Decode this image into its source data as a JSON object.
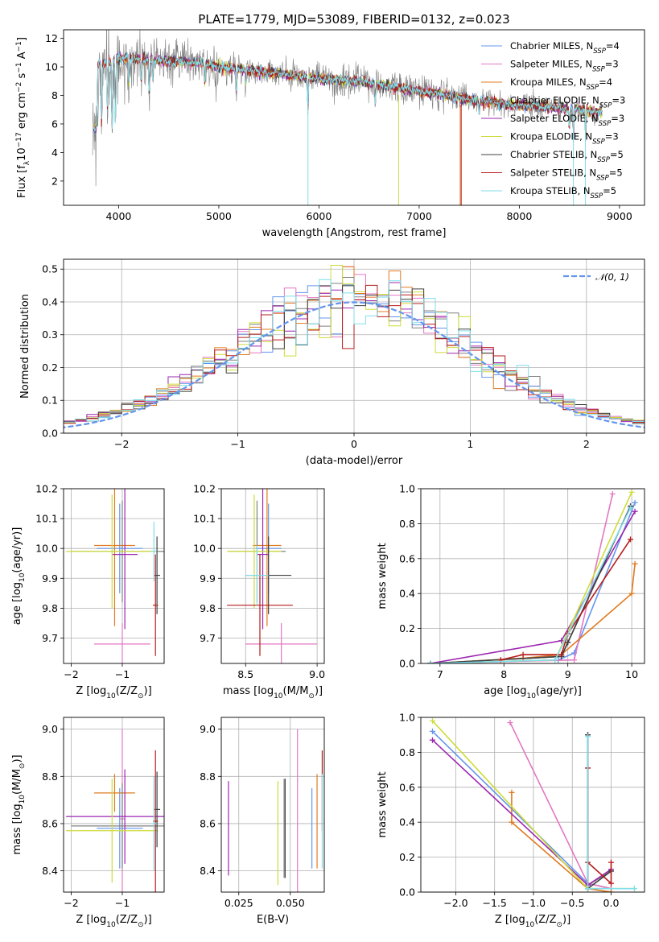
{
  "figure": {
    "title": "PLATE=1779, MJD=53089, FIBERID=0132, z=0.023"
  },
  "models": [
    {
      "name": "Chabrier MILES",
      "nssp": "4",
      "color": "#6495ed"
    },
    {
      "name": "Salpeter MILES",
      "nssp": "3",
      "color": "#e377c2"
    },
    {
      "name": "Kroupa MILES",
      "nssp": "4",
      "color": "#e07b20"
    },
    {
      "name": "Chabrier ELODIE",
      "nssp": "3",
      "color": "#808080"
    },
    {
      "name": "Salpeter ELODIE",
      "nssp": "3",
      "color": "#9c27b0"
    },
    {
      "name": "Kroupa ELODIE",
      "nssp": "3",
      "color": "#cddc39"
    },
    {
      "name": "Chabrier STELIB",
      "nssp": "5",
      "color": "#404040"
    },
    {
      "name": "Salpeter STELIB",
      "nssp": "5",
      "color": "#b71c1c"
    },
    {
      "name": "Kroupa STELIB",
      "nssp": "5",
      "color": "#80deea"
    }
  ],
  "chart_data": [
    {
      "id": "spectrum",
      "type": "line",
      "xlabel": "wavelength [Angstrom, rest frame]",
      "ylabel": "Flux [f_λ10^-17 erg cm^-2 s^-1 A^-1]",
      "xlim": [
        3450,
        9250
      ],
      "ylim": [
        0.3,
        12.6
      ],
      "xticks": [
        4000,
        5000,
        6000,
        7000,
        8000,
        9000
      ],
      "yticks": [
        2,
        4,
        6,
        8,
        10,
        12
      ],
      "data_color": "#808080",
      "continuum": {
        "x": [
          3760,
          3800,
          3900,
          4000,
          4100,
          4300,
          4500,
          4800,
          5000,
          5500,
          6000,
          6500,
          7000,
          7300,
          7500,
          8000,
          8300,
          8600,
          8800
        ],
        "y": [
          9.6,
          10.2,
          10.4,
          10.6,
          10.6,
          10.5,
          10.4,
          10.3,
          10.0,
          9.6,
          9.2,
          8.9,
          8.3,
          8.0,
          7.7,
          7.3,
          7.2,
          7.0,
          6.8
        ]
      },
      "legend_position": "upper right"
    },
    {
      "id": "residuals",
      "type": "step",
      "xlabel": "(data-model)/error",
      "ylabel": "Normed distribution",
      "xlim": [
        -2.5,
        2.5
      ],
      "ylim": [
        0,
        0.53
      ],
      "xticks": [
        -2,
        -1,
        0,
        1,
        2
      ],
      "yticks": [
        0.0,
        0.1,
        0.2,
        0.3,
        0.4,
        0.5
      ],
      "bin_width": 0.1,
      "reference": {
        "label": "𝒩(0, 1)",
        "color": "#6495ed",
        "style": "dashed"
      },
      "legend_position": "upper right",
      "grid": true
    },
    {
      "id": "age_vs_Z",
      "type": "errorbar",
      "xlabel": "Z [log10(Z/Z⊙)]",
      "ylabel": "age  [log10(age/yr)]",
      "xlim": [
        -2.15,
        -0.18
      ],
      "ylim": [
        9.615,
        10.2
      ],
      "xticks": [
        -2,
        -1
      ],
      "yticks": [
        9.7,
        9.8,
        9.9,
        10.0,
        10.1,
        10.2
      ],
      "points": [
        {
          "m": 0,
          "x": -1.05,
          "y": 10.0,
          "xerr": 0.45,
          "yerr": 0.15
        },
        {
          "m": 1,
          "x": -1.0,
          "y": 9.68,
          "xerr": 0.55,
          "yerr": 0.07
        },
        {
          "m": 2,
          "x": -1.15,
          "y": 10.01,
          "xerr": 0.4,
          "yerr": 0.27
        },
        {
          "m": 3,
          "x": -1.0,
          "y": 9.99,
          "xerr": 1.0,
          "yerr": 0.17
        },
        {
          "m": 4,
          "x": -0.95,
          "y": 9.98,
          "xerr": 0.25,
          "yerr": 0.25
        },
        {
          "m": 5,
          "x": -1.2,
          "y": 9.99,
          "xerr": 0.9,
          "yerr": 0.19
        },
        {
          "m": 6,
          "x": -0.32,
          "y": 9.91,
          "xerr": 0.06,
          "yerr": 0.13
        },
        {
          "m": 7,
          "x": -0.35,
          "y": 9.81,
          "xerr": 0.05,
          "yerr": 0.17
        },
        {
          "m": 8,
          "x": -0.38,
          "y": 9.99,
          "xerr": 0.05,
          "yerr": 0.1
        }
      ]
    },
    {
      "id": "age_vs_mass",
      "type": "errorbar",
      "xlabel": "mass [log10(M/M⊙)]",
      "ylabel": "",
      "xlim": [
        8.33,
        9.05
      ],
      "ylim": [
        9.615,
        10.2
      ],
      "xticks": [
        8.5,
        9.0
      ],
      "yticks": [
        9.7,
        9.8,
        9.9,
        10.0,
        10.1,
        10.2
      ],
      "points": [
        {
          "m": 0,
          "x": 8.66,
          "y": 10.0,
          "xerr": 0.09,
          "yerr": 0.15
        },
        {
          "m": 1,
          "x": 8.75,
          "y": 9.68,
          "xerr": 0.25,
          "yerr": 0.07
        },
        {
          "m": 2,
          "x": 8.65,
          "y": 10.01,
          "xerr": 0.1,
          "yerr": 0.27
        },
        {
          "m": 3,
          "x": 8.58,
          "y": 9.99,
          "xerr": 0.2,
          "yerr": 0.17
        },
        {
          "m": 4,
          "x": 8.62,
          "y": 9.98,
          "xerr": 0.04,
          "yerr": 0.25
        },
        {
          "m": 5,
          "x": 8.56,
          "y": 9.99,
          "xerr": 0.19,
          "yerr": 0.19
        },
        {
          "m": 6,
          "x": 8.66,
          "y": 9.91,
          "xerr": 0.16,
          "yerr": 0.13
        },
        {
          "m": 7,
          "x": 8.6,
          "y": 9.81,
          "xerr": 0.23,
          "yerr": 0.17
        },
        {
          "m": 8,
          "x": 8.58,
          "y": 9.91,
          "xerr": 0.08,
          "yerr": 0.1
        }
      ]
    },
    {
      "id": "massweight_vs_age",
      "type": "line",
      "xlabel": "age  [log10(age/yr)]",
      "ylabel": "mass weight",
      "xlim": [
        6.7,
        10.2
      ],
      "ylim": [
        0,
        1.0
      ],
      "xticks": [
        7,
        8,
        9,
        10
      ],
      "yticks": [
        0.0,
        0.2,
        0.4,
        0.6,
        0.8,
        1.0
      ],
      "grid": true,
      "series": [
        {
          "m": 0,
          "x": [
            6.85,
            8.85,
            9.1,
            10.05
          ],
          "y": [
            0.0,
            0.02,
            0.06,
            0.92
          ]
        },
        {
          "m": 1,
          "x": [
            6.85,
            9.1,
            9.7
          ],
          "y": [
            0.0,
            0.02,
            0.97
          ]
        },
        {
          "m": 2,
          "x": [
            6.85,
            8.3,
            8.9,
            10.0,
            10.05
          ],
          "y": [
            0.0,
            0.03,
            0.05,
            0.4,
            0.57
          ]
        },
        {
          "m": 3,
          "x": [
            6.85,
            8.9,
            9.0,
            9.98
          ],
          "y": [
            0.0,
            0.04,
            0.12,
            0.9
          ]
        },
        {
          "m": 4,
          "x": [
            6.85,
            8.9,
            10.05
          ],
          "y": [
            0.0,
            0.13,
            0.87
          ]
        },
        {
          "m": 5,
          "x": [
            6.85,
            8.8,
            10.0
          ],
          "y": [
            0.0,
            0.02,
            0.98
          ]
        },
        {
          "m": 6,
          "x": [
            6.85,
            8.9,
            9.0,
            9.98
          ],
          "y": [
            0.0,
            0.04,
            0.12,
            0.9
          ]
        },
        {
          "m": 7,
          "x": [
            7.95,
            8.3,
            8.9,
            9.0,
            9.98
          ],
          "y": [
            0.02,
            0.05,
            0.05,
            0.17,
            0.71
          ]
        },
        {
          "m": 8,
          "x": [
            6.85,
            8.8,
            9.98
          ],
          "y": [
            0.0,
            0.02,
            0.89
          ]
        }
      ]
    },
    {
      "id": "mass_vs_Z",
      "type": "errorbar",
      "xlabel": "Z [log10(Z/Z⊙)]",
      "ylabel": "mass [log10(M/M⊙)]",
      "xlim": [
        -2.15,
        -0.18
      ],
      "ylim": [
        8.31,
        9.05
      ],
      "xticks": [
        -2,
        -1
      ],
      "yticks": [
        8.4,
        8.6,
        8.8,
        9.0
      ],
      "points": [
        {
          "m": 0,
          "x": -1.05,
          "y": 8.58,
          "xerr": 0.45,
          "yerr": 0.17
        },
        {
          "m": 1,
          "x": -1.0,
          "y": 8.62,
          "xerr": 0.05,
          "yerr": 0.38
        },
        {
          "m": 2,
          "x": -1.15,
          "y": 8.73,
          "xerr": 0.4,
          "yerr": 0.08
        },
        {
          "m": 3,
          "x": -1.0,
          "y": 8.59,
          "xerr": 1.0,
          "yerr": 0.18
        },
        {
          "m": 4,
          "x": -0.95,
          "y": 8.63,
          "xerr": 1.15,
          "yerr": 0.2
        },
        {
          "m": 5,
          "x": -1.2,
          "y": 8.57,
          "xerr": 0.9,
          "yerr": 0.22
        },
        {
          "m": 6,
          "x": -0.32,
          "y": 8.66,
          "xerr": 0.06,
          "yerr": 0.16
        },
        {
          "m": 7,
          "x": -0.35,
          "y": 8.61,
          "xerr": 0.05,
          "yerr": 0.3
        },
        {
          "m": 8,
          "x": -0.38,
          "y": 8.6,
          "xerr": 0.05,
          "yerr": 0.2
        }
      ]
    },
    {
      "id": "mass_vs_ebv",
      "type": "errorbar",
      "xlabel": "E(B-V)",
      "ylabel": "",
      "xlim": [
        0.0165,
        0.0665
      ],
      "ylim": [
        8.31,
        9.05
      ],
      "xticks": [
        0.025,
        0.05
      ],
      "yticks": [
        8.4,
        8.6,
        8.8,
        9.0
      ],
      "points": [
        {
          "m": 0,
          "x": 0.0605,
          "y": 8.58,
          "yerr": 0.17
        },
        {
          "m": 1,
          "x": 0.0535,
          "y": 8.62,
          "yerr": 0.38
        },
        {
          "m": 2,
          "x": 0.063,
          "y": 8.61,
          "yerr": 0.2
        },
        {
          "m": 3,
          "x": 0.047,
          "y": 8.58,
          "yerr": 0.21
        },
        {
          "m": 4,
          "x": 0.02,
          "y": 8.58,
          "yerr": 0.2
        },
        {
          "m": 5,
          "x": 0.044,
          "y": 8.56,
          "yerr": 0.22
        },
        {
          "m": 6,
          "x": 0.0475,
          "y": 8.58,
          "yerr": 0.21
        },
        {
          "m": 7,
          "x": 0.0655,
          "y": 8.74,
          "yerr": 0.17
        },
        {
          "m": 8,
          "x": 0.0655,
          "y": 8.61,
          "yerr": 0.2
        }
      ]
    },
    {
      "id": "massweight_vs_Z",
      "type": "line",
      "xlabel": "Z [log10(Z/Z⊙)]",
      "ylabel": "mass weight",
      "xlim": [
        -2.45,
        0.43
      ],
      "ylim": [
        0,
        1.0
      ],
      "xticks": [
        -2.0,
        -1.5,
        -1.0,
        -0.5,
        0.0
      ],
      "yticks": [
        0.0,
        0.2,
        0.4,
        0.6,
        0.8,
        1.0
      ],
      "grid": true,
      "series": [
        {
          "m": 0,
          "x": [
            -2.3,
            -0.3,
            0.0
          ],
          "y": [
            0.92,
            0.05,
            0.02
          ]
        },
        {
          "m": 1,
          "x": [
            -1.3,
            -0.3,
            0.0
          ],
          "y": [
            0.97,
            0.05,
            0.02
          ]
        },
        {
          "m": 2,
          "x": [
            -1.28,
            -1.28,
            -0.3,
            0.0
          ],
          "y": [
            0.57,
            0.4,
            0.02,
            0.0
          ]
        },
        {
          "m": 3,
          "x": [
            -0.3,
            -0.3,
            0.0
          ],
          "y": [
            0.9,
            0.04,
            0.12
          ]
        },
        {
          "m": 4,
          "x": [
            -2.3,
            -0.3,
            0.0
          ],
          "y": [
            0.87,
            0.04,
            0.13
          ]
        },
        {
          "m": 5,
          "x": [
            -2.3,
            -0.3,
            0.3
          ],
          "y": [
            0.98,
            0.02,
            0.02
          ]
        },
        {
          "m": 6,
          "x": [
            -0.3,
            -0.3,
            0.0
          ],
          "y": [
            0.9,
            0.02,
            0.12
          ]
        },
        {
          "m": 7,
          "x": [
            -0.3,
            -0.3,
            0.0,
            0.0
          ],
          "y": [
            0.71,
            0.17,
            0.05,
            0.17
          ]
        },
        {
          "m": 8,
          "x": [
            -0.3,
            -0.3,
            0.3
          ],
          "y": [
            0.89,
            0.02,
            0.02
          ]
        }
      ]
    }
  ]
}
